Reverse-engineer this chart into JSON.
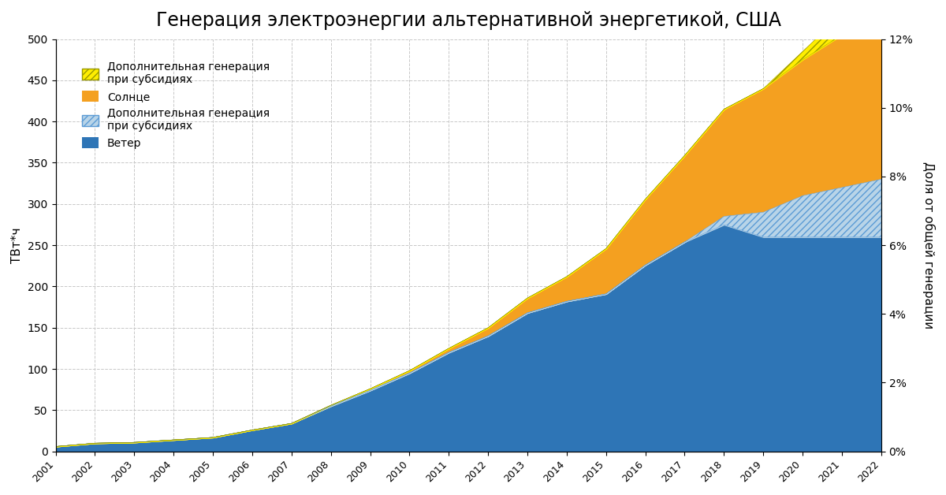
{
  "title": "Генерация электроэнергии альтернативной энергетикой, США",
  "ylabel_left": "ТВт*ч",
  "ylabel_right": "Доля от общей генерации",
  "years": [
    2001,
    2002,
    2003,
    2004,
    2005,
    2006,
    2007,
    2008,
    2009,
    2010,
    2011,
    2012,
    2013,
    2014,
    2015,
    2016,
    2017,
    2018,
    2019,
    2020,
    2021,
    2022
  ],
  "wind_base": [
    6,
    10,
    11,
    14,
    17,
    26,
    34,
    55,
    74,
    95,
    120,
    140,
    168,
    182,
    191,
    226,
    254,
    275,
    260,
    260,
    260,
    260
  ],
  "wind_extra": [
    0,
    0,
    0,
    0,
    0,
    0,
    0,
    0,
    0,
    0,
    0,
    0,
    0,
    0,
    0,
    0,
    0,
    10,
    30,
    50,
    60,
    70
  ],
  "solar_base": [
    0,
    0,
    0,
    0,
    0,
    0,
    0,
    1,
    2,
    3,
    5,
    10,
    18,
    30,
    55,
    80,
    105,
    130,
    150,
    165,
    185,
    190
  ],
  "yellow_extra": [
    0,
    0,
    0,
    0,
    0,
    0,
    0,
    0,
    0,
    0,
    0,
    0,
    0,
    0,
    0,
    0,
    0,
    0,
    0,
    10,
    25,
    45
  ],
  "color_wind": "#2E75B6",
  "color_solar": "#F4A020",
  "color_wind_hatch_fill": "#B8D4E8",
  "color_wind_hatch_edge": "#5B9BD5",
  "color_yellow_fill": "#FFEE00",
  "color_yellow_edge": "#999900",
  "background": "#FFFFFF",
  "grid_color": "#C8C8C8",
  "ylim_left": [
    0,
    500
  ],
  "ylim_right": [
    0,
    0.12
  ],
  "yticks_left": [
    0,
    50,
    100,
    150,
    200,
    250,
    300,
    350,
    400,
    450,
    500
  ],
  "yticks_right": [
    0,
    0.02,
    0.04,
    0.06,
    0.08,
    0.1,
    0.12
  ],
  "title_fontsize": 17
}
